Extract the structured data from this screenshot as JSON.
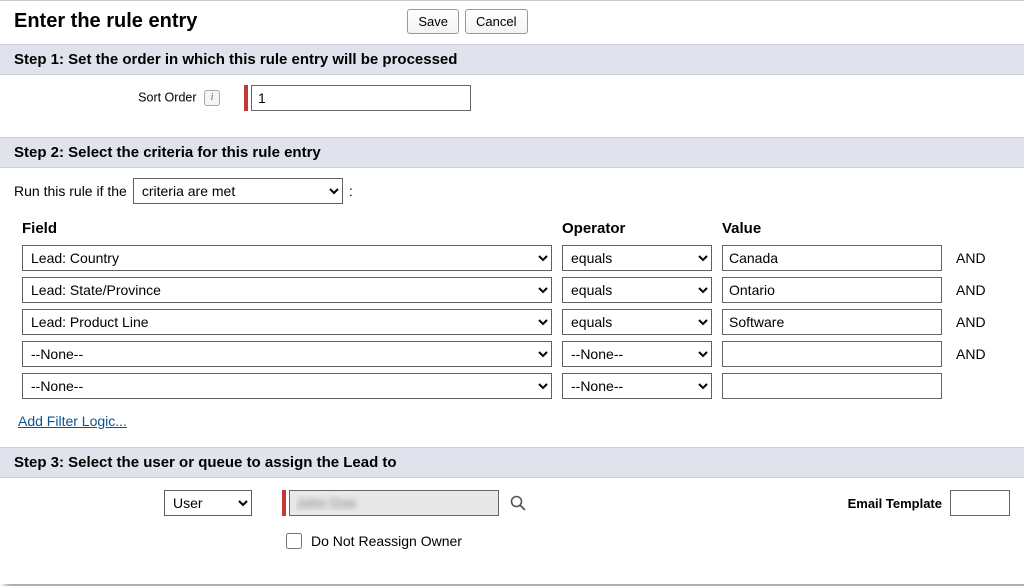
{
  "header": {
    "title": "Enter the rule entry",
    "save_label": "Save",
    "cancel_label": "Cancel"
  },
  "step1": {
    "heading": "Step 1: Set the order in which this rule entry will be processed",
    "sort_order_label": "Sort Order",
    "sort_order_value": "1"
  },
  "step2": {
    "heading": "Step 2: Select the criteria for this rule entry",
    "run_rule_prefix": "Run this rule if the",
    "criteria_select_value": "criteria are met",
    "columns": {
      "field": "Field",
      "operator": "Operator",
      "value": "Value"
    },
    "and_label": "AND",
    "rows": [
      {
        "field": "Lead: Country",
        "operator": "equals",
        "value": "Canada",
        "show_and": true
      },
      {
        "field": "Lead: State/Province",
        "operator": "equals",
        "value": "Ontario",
        "show_and": true
      },
      {
        "field": "Lead: Product Line",
        "operator": "equals",
        "value": "Software",
        "show_and": true
      },
      {
        "field": "--None--",
        "operator": "--None--",
        "value": "",
        "show_and": true
      },
      {
        "field": "--None--",
        "operator": "--None--",
        "value": "",
        "show_and": false
      }
    ],
    "add_filter_logic_label": "Add Filter Logic..."
  },
  "step3": {
    "heading": "Step 3: Select the user or queue to assign the Lead to",
    "assignee_type": "User",
    "assignee_value": "John Doe",
    "email_template_label": "Email Template",
    "email_template_value": "",
    "do_not_reassign_label": "Do Not Reassign Owner",
    "do_not_reassign_checked": false
  },
  "colors": {
    "section_bg": "#e0e3ec",
    "required_bar": "#c23934",
    "link": "#0b5394"
  }
}
